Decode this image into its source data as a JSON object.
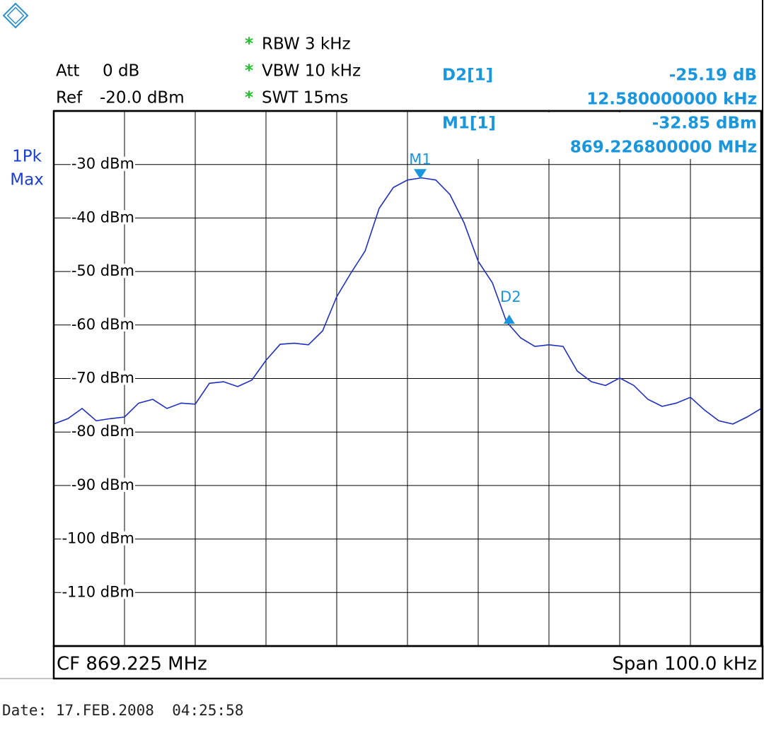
{
  "chart_data": {
    "type": "line",
    "header": {
      "att_label": "Att",
      "att_value": "0 dB",
      "ref_label": "Ref",
      "ref_value": "-20.0 dBm",
      "settings": [
        {
          "flag": "*",
          "text": "RBW 3 kHz"
        },
        {
          "flag": "*",
          "text": "VBW 10 kHz"
        },
        {
          "flag": "*",
          "text": "SWT 15ms"
        }
      ],
      "trace_mode": [
        "1Pk",
        "Max"
      ]
    },
    "center_label": "CF 869.225 MHz",
    "span_label": "Span 100.0 kHz",
    "date_label": "Date: 17.FEB.2008  04:25:58",
    "xlim": [
      869.175,
      869.275
    ],
    "ylim": [
      -120,
      -20
    ],
    "yticks": [
      {
        "value": -30,
        "label": "-30 dBm"
      },
      {
        "value": -40,
        "label": "-40 dBm"
      },
      {
        "value": -50,
        "label": "-50 dBm"
      },
      {
        "value": -60,
        "label": "-60 dBm"
      },
      {
        "value": -70,
        "label": "-70 dBm"
      },
      {
        "value": -80,
        "label": "-80 dBm"
      },
      {
        "value": -90,
        "label": "-90 dBm"
      },
      {
        "value": -100,
        "label": "-100 dBm"
      },
      {
        "value": -110,
        "label": "-110 dBm"
      }
    ],
    "grid": true,
    "x": [
      869.175,
      869.177,
      869.179,
      869.181,
      869.183,
      869.185,
      869.187,
      869.189,
      869.191,
      869.193,
      869.195,
      869.197,
      869.199,
      869.201,
      869.203,
      869.205,
      869.207,
      869.209,
      869.211,
      869.213,
      869.215,
      869.217,
      869.219,
      869.221,
      869.223,
      869.225,
      869.227,
      869.229,
      869.231,
      869.233,
      869.235,
      869.237,
      869.239,
      869.241,
      869.243,
      869.245,
      869.247,
      869.249,
      869.251,
      869.253,
      869.255,
      869.257,
      869.259,
      869.261,
      869.263,
      869.265,
      869.267,
      869.269,
      869.271,
      869.273,
      869.275
    ],
    "series": [
      {
        "color": "#1f2fc0",
        "values": [
          -78.5,
          -77.5,
          -75.6,
          -77.9,
          -77.5,
          -77.2,
          -74.6,
          -73.9,
          -75.6,
          -74.6,
          -74.8,
          -70.9,
          -70.6,
          -71.5,
          -70.3,
          -66.6,
          -63.6,
          -63.4,
          -63.7,
          -61.1,
          -54.7,
          -50.3,
          -46.2,
          -38.2,
          -34.3,
          -32.9,
          -32.5,
          -32.9,
          -35.6,
          -40.9,
          -48.1,
          -52.1,
          -59.4,
          -62.4,
          -64.0,
          -63.7,
          -64.0,
          -68.6,
          -70.6,
          -71.3,
          -69.9,
          -71.3,
          -73.9,
          -75.2,
          -74.6,
          -73.5,
          -75.9,
          -77.9,
          -78.5,
          -77.2,
          -75.6
        ]
      }
    ],
    "marker_color": "#1a96dc",
    "markers": [
      {
        "name": "M1",
        "readout": "M1[1]",
        "x": 869.2268,
        "y": -32.85,
        "x_label": "869.226800000 MHz",
        "y_label": "-32.85 dBm"
      },
      {
        "name": "D2",
        "readout": "D2[1]",
        "dx": 0.01258,
        "dy": -25.19,
        "dx_label": "12.580000000 kHz",
        "dy_label": "-25.19 dB"
      }
    ]
  }
}
